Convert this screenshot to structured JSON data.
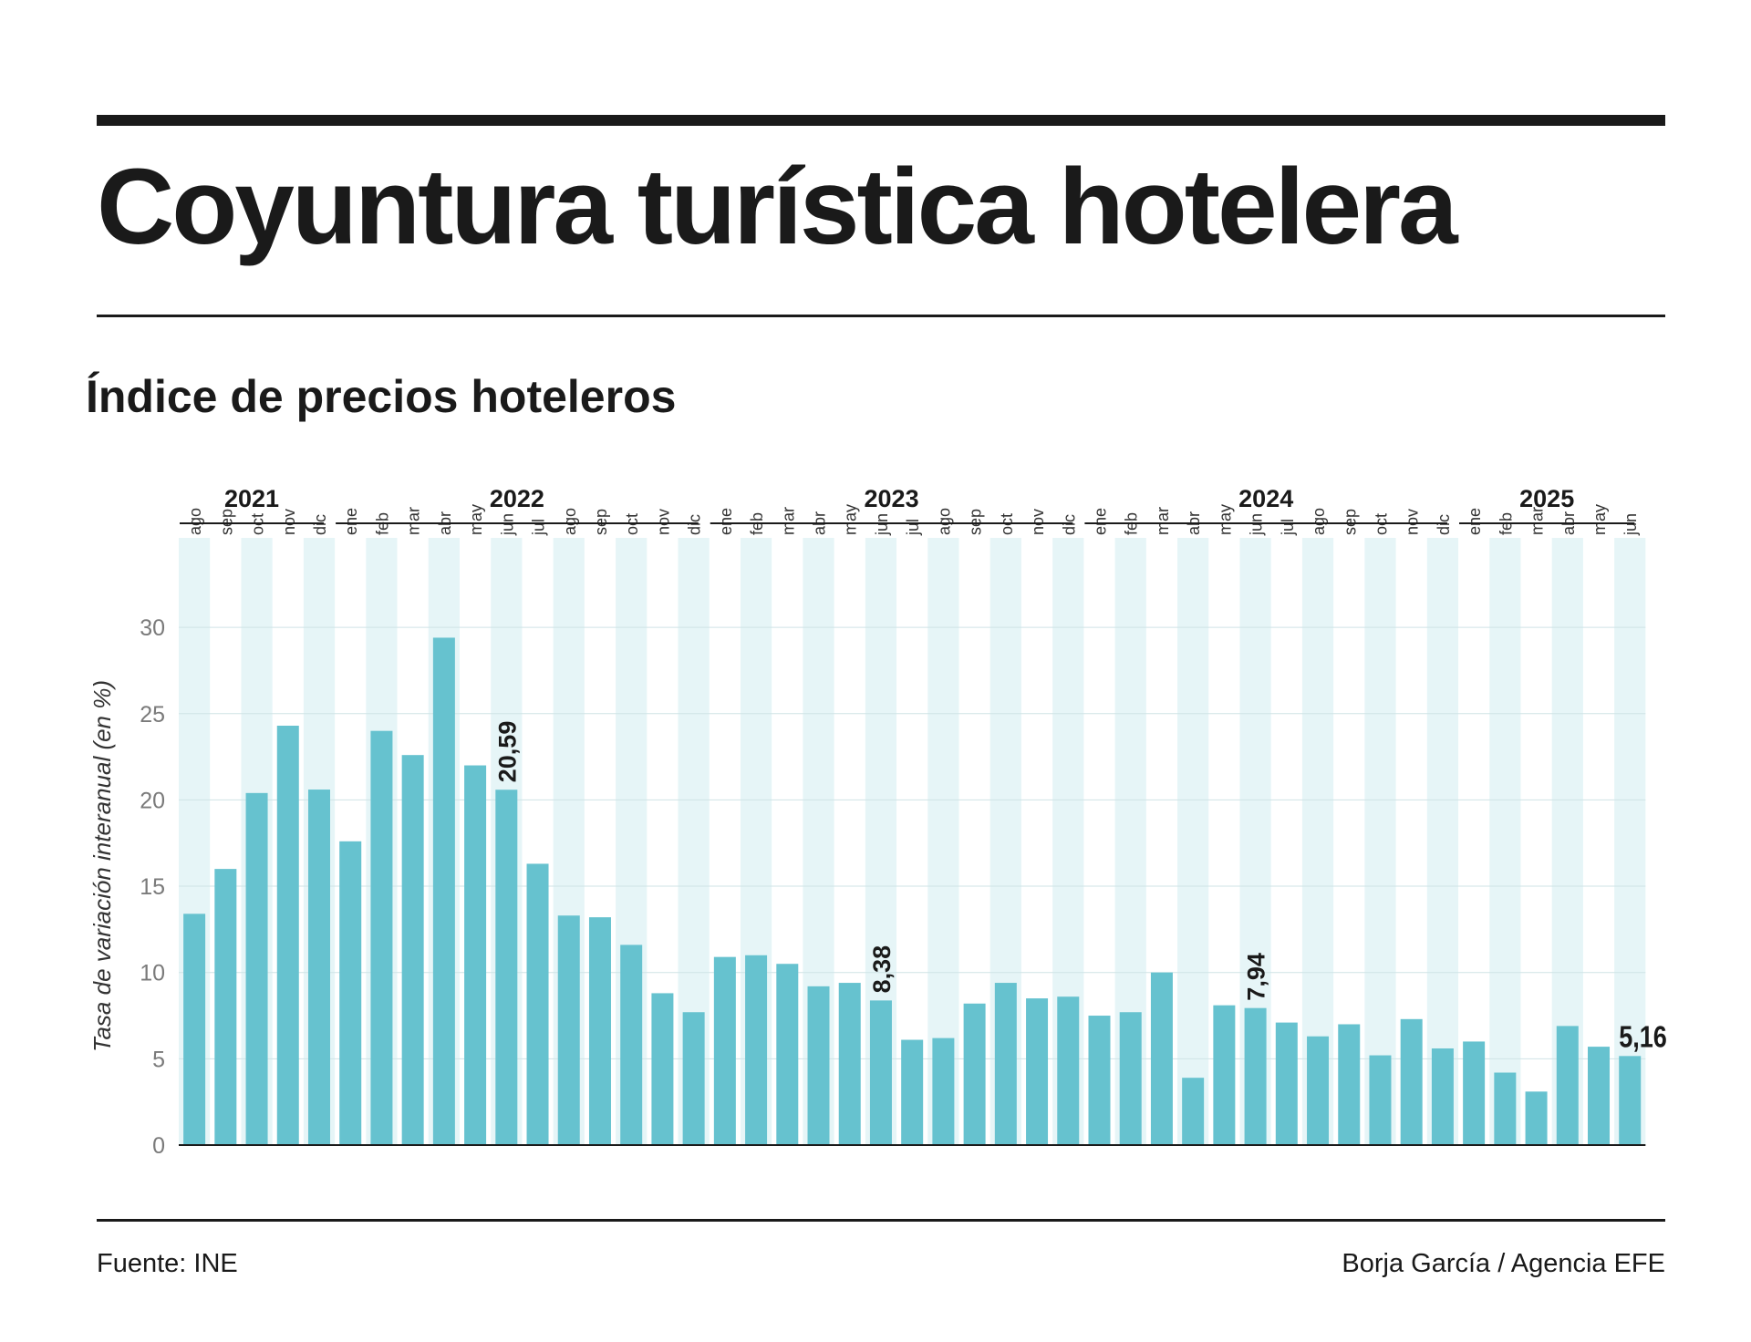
{
  "title": "Coyuntura turística hotelera",
  "subtitle": "Índice de precios hoteleros",
  "source": "Fuente: INE",
  "credit": "Borja García / Agencia EFE",
  "colors": {
    "bar": "#66c2cf",
    "stripe": "#e6f5f7",
    "text": "#1a1a1a",
    "axis": "#7a7a7a"
  },
  "chart_data": {
    "type": "bar",
    "ylabel": "Tasa de variación interanual (en %)",
    "ylim": [
      0,
      30
    ],
    "yticks": [
      0,
      5,
      10,
      15,
      20,
      25,
      30
    ],
    "grid": true,
    "years": [
      {
        "label": "2021",
        "start": 0,
        "count": 5
      },
      {
        "label": "2022",
        "start": 5,
        "count": 12
      },
      {
        "label": "2023",
        "start": 17,
        "count": 12
      },
      {
        "label": "2024",
        "start": 29,
        "count": 12
      },
      {
        "label": "2025",
        "start": 41,
        "count": 6
      }
    ],
    "categories": [
      "ago",
      "sep",
      "oct",
      "nov",
      "dic",
      "ene",
      "feb",
      "mar",
      "abr",
      "may",
      "jun",
      "jul",
      "ago",
      "sep",
      "oct",
      "nov",
      "dic",
      "ene",
      "feb",
      "mar",
      "abr",
      "may",
      "jun",
      "jul",
      "ago",
      "sep",
      "oct",
      "nov",
      "dic",
      "ene",
      "feb",
      "mar",
      "abr",
      "may",
      "jun",
      "jul",
      "ago",
      "sep",
      "oct",
      "nov",
      "dic",
      "ene",
      "feb",
      "mar",
      "abr",
      "may",
      "jun"
    ],
    "values": [
      13.4,
      16.0,
      20.4,
      24.3,
      20.6,
      17.6,
      24.0,
      22.6,
      29.4,
      22.0,
      20.59,
      16.3,
      13.3,
      13.2,
      11.6,
      8.8,
      7.7,
      10.9,
      11.0,
      10.5,
      9.2,
      9.4,
      8.38,
      6.1,
      6.2,
      8.2,
      9.4,
      8.5,
      8.6,
      7.5,
      7.7,
      10.0,
      3.9,
      8.1,
      7.94,
      7.1,
      6.3,
      7.0,
      5.2,
      7.3,
      5.6,
      6.0,
      4.2,
      3.1,
      6.9,
      5.7,
      5.16
    ],
    "annotations": [
      {
        "index": 10,
        "label": "20,59"
      },
      {
        "index": 22,
        "label": "8,38"
      },
      {
        "index": 34,
        "label": "7,94"
      },
      {
        "index": 46,
        "label": "5,16"
      }
    ]
  }
}
